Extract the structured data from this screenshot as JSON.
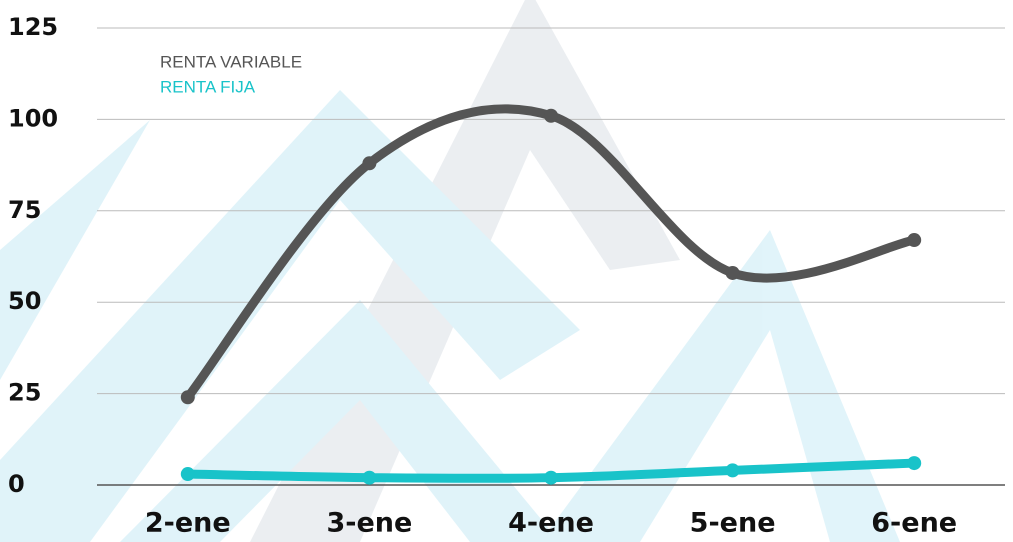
{
  "chart_data": {
    "type": "line",
    "categories": [
      "2-ene",
      "3-ene",
      "4-ene",
      "5-ene",
      "6-ene"
    ],
    "series": [
      {
        "name": "RENTA VARIABLE",
        "color": "#555555",
        "values": [
          24,
          88,
          101,
          58,
          67
        ]
      },
      {
        "name": "RENTA FIJA",
        "color": "#19c3c9",
        "values": [
          3,
          2,
          2,
          4,
          6
        ]
      }
    ],
    "ylim": [
      0,
      125
    ],
    "yticks": [
      0,
      25,
      50,
      75,
      100,
      125
    ],
    "grid": true,
    "smooth": true,
    "legend": "top-left"
  }
}
